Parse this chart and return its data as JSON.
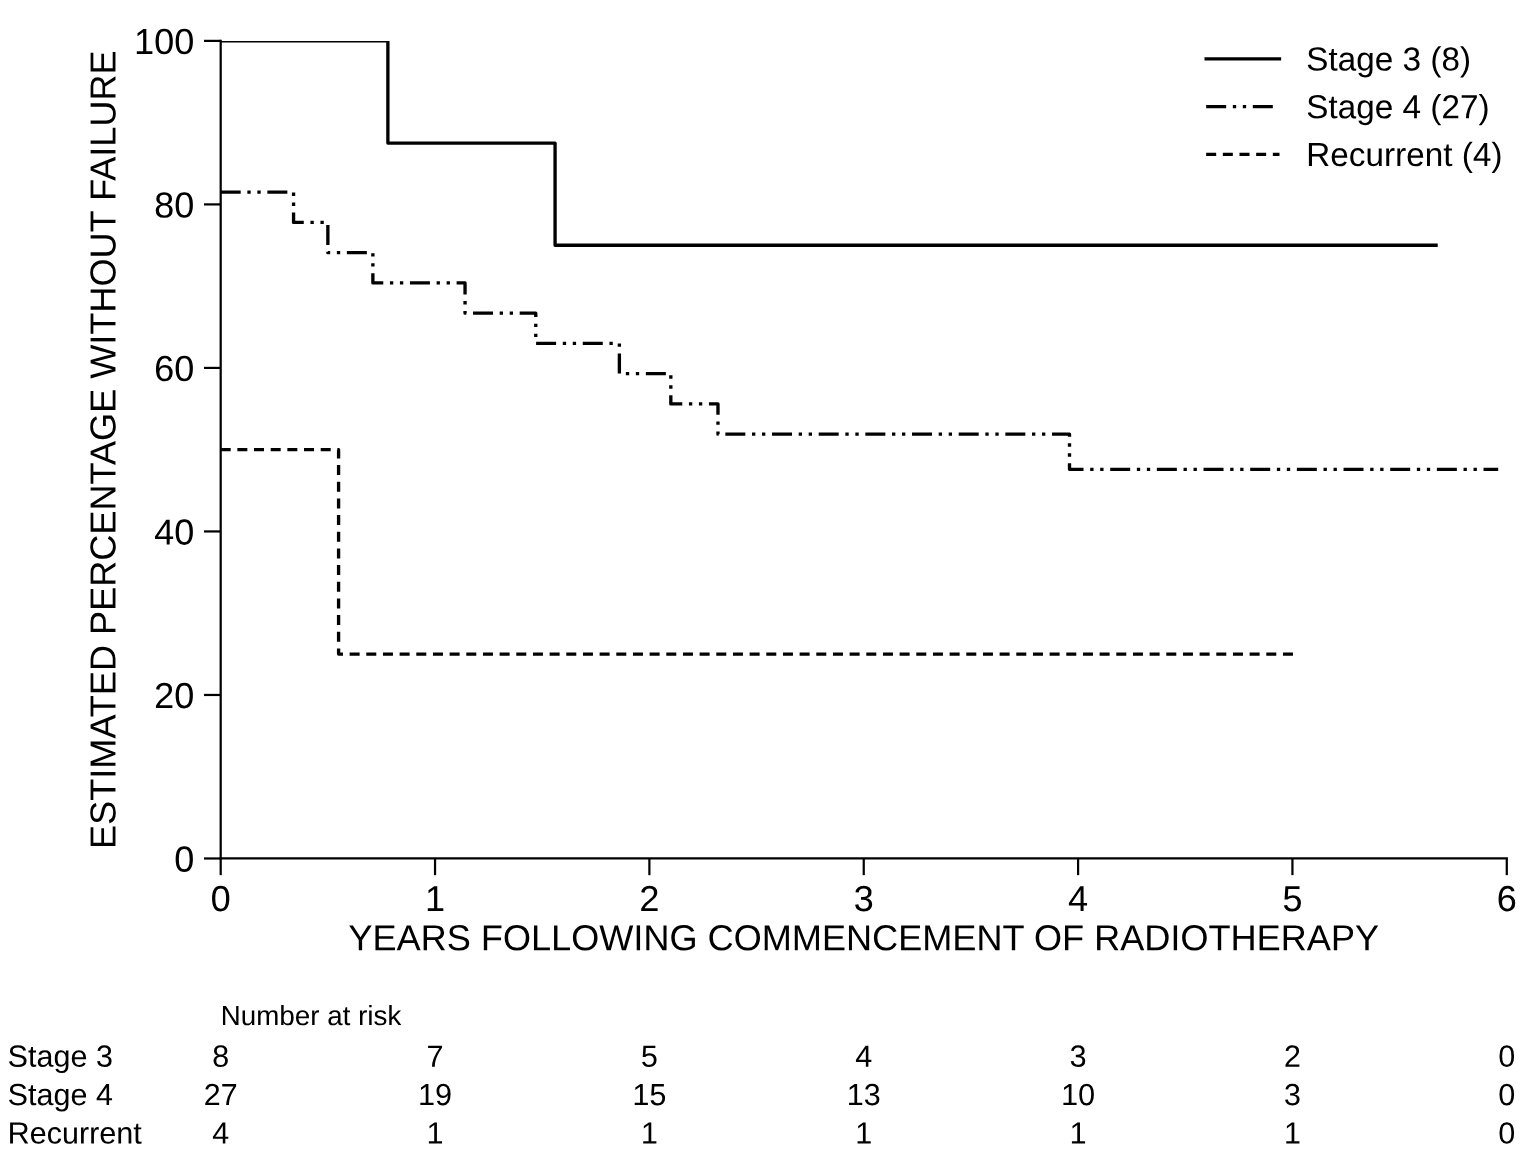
{
  "chart_data": {
    "type": "step",
    "xlabel": "YEARS FOLLOWING COMMENCEMENT OF RADIOTHERAPY",
    "ylabel": "ESTIMATED PERCENTAGE WITHOUT FAILURE",
    "xlim": [
      0,
      6
    ],
    "xticks": [
      0,
      1,
      2,
      3,
      4,
      5,
      6
    ],
    "ylim": [
      0,
      100
    ],
    "yticks": [
      0,
      20,
      40,
      60,
      80,
      100
    ],
    "grid": false,
    "legend": "top right",
    "marker": "none",
    "series": [
      {
        "name": "Stage 3 (8)",
        "color": "#000000",
        "line_style": "solid",
        "x": [
          0,
          0.78,
          1.56,
          5.67
        ],
        "values": [
          100,
          87.5,
          75,
          75
        ]
      },
      {
        "name": "Stage 4 (27)",
        "color": "#000000",
        "line_style": "dashdot",
        "x": [
          0,
          0.34,
          0.5,
          0.71,
          1.14,
          1.47,
          1.86,
          2.1,
          2.32,
          3.96,
          5.96
        ],
        "values": [
          81.5,
          77.8,
          74.1,
          70.4,
          66.7,
          63,
          59.3,
          55.6,
          51.9,
          47.6,
          47.6
        ]
      },
      {
        "name": "Recurrent (4)",
        "color": "#000000",
        "line_style": "dashed",
        "x": [
          0,
          0.55,
          5.02
        ],
        "values": [
          50,
          25,
          25
        ]
      }
    ],
    "annotations": [
      "Number at risk",
      "Stage 3",
      "8",
      "7",
      "5",
      "4",
      "3",
      "2",
      "0",
      "Stage 4",
      "27",
      "19",
      "15",
      "13",
      "10",
      "3",
      "0",
      "Recurrent",
      "4",
      "1",
      "1",
      "1",
      "1",
      "1",
      "0"
    ]
  }
}
